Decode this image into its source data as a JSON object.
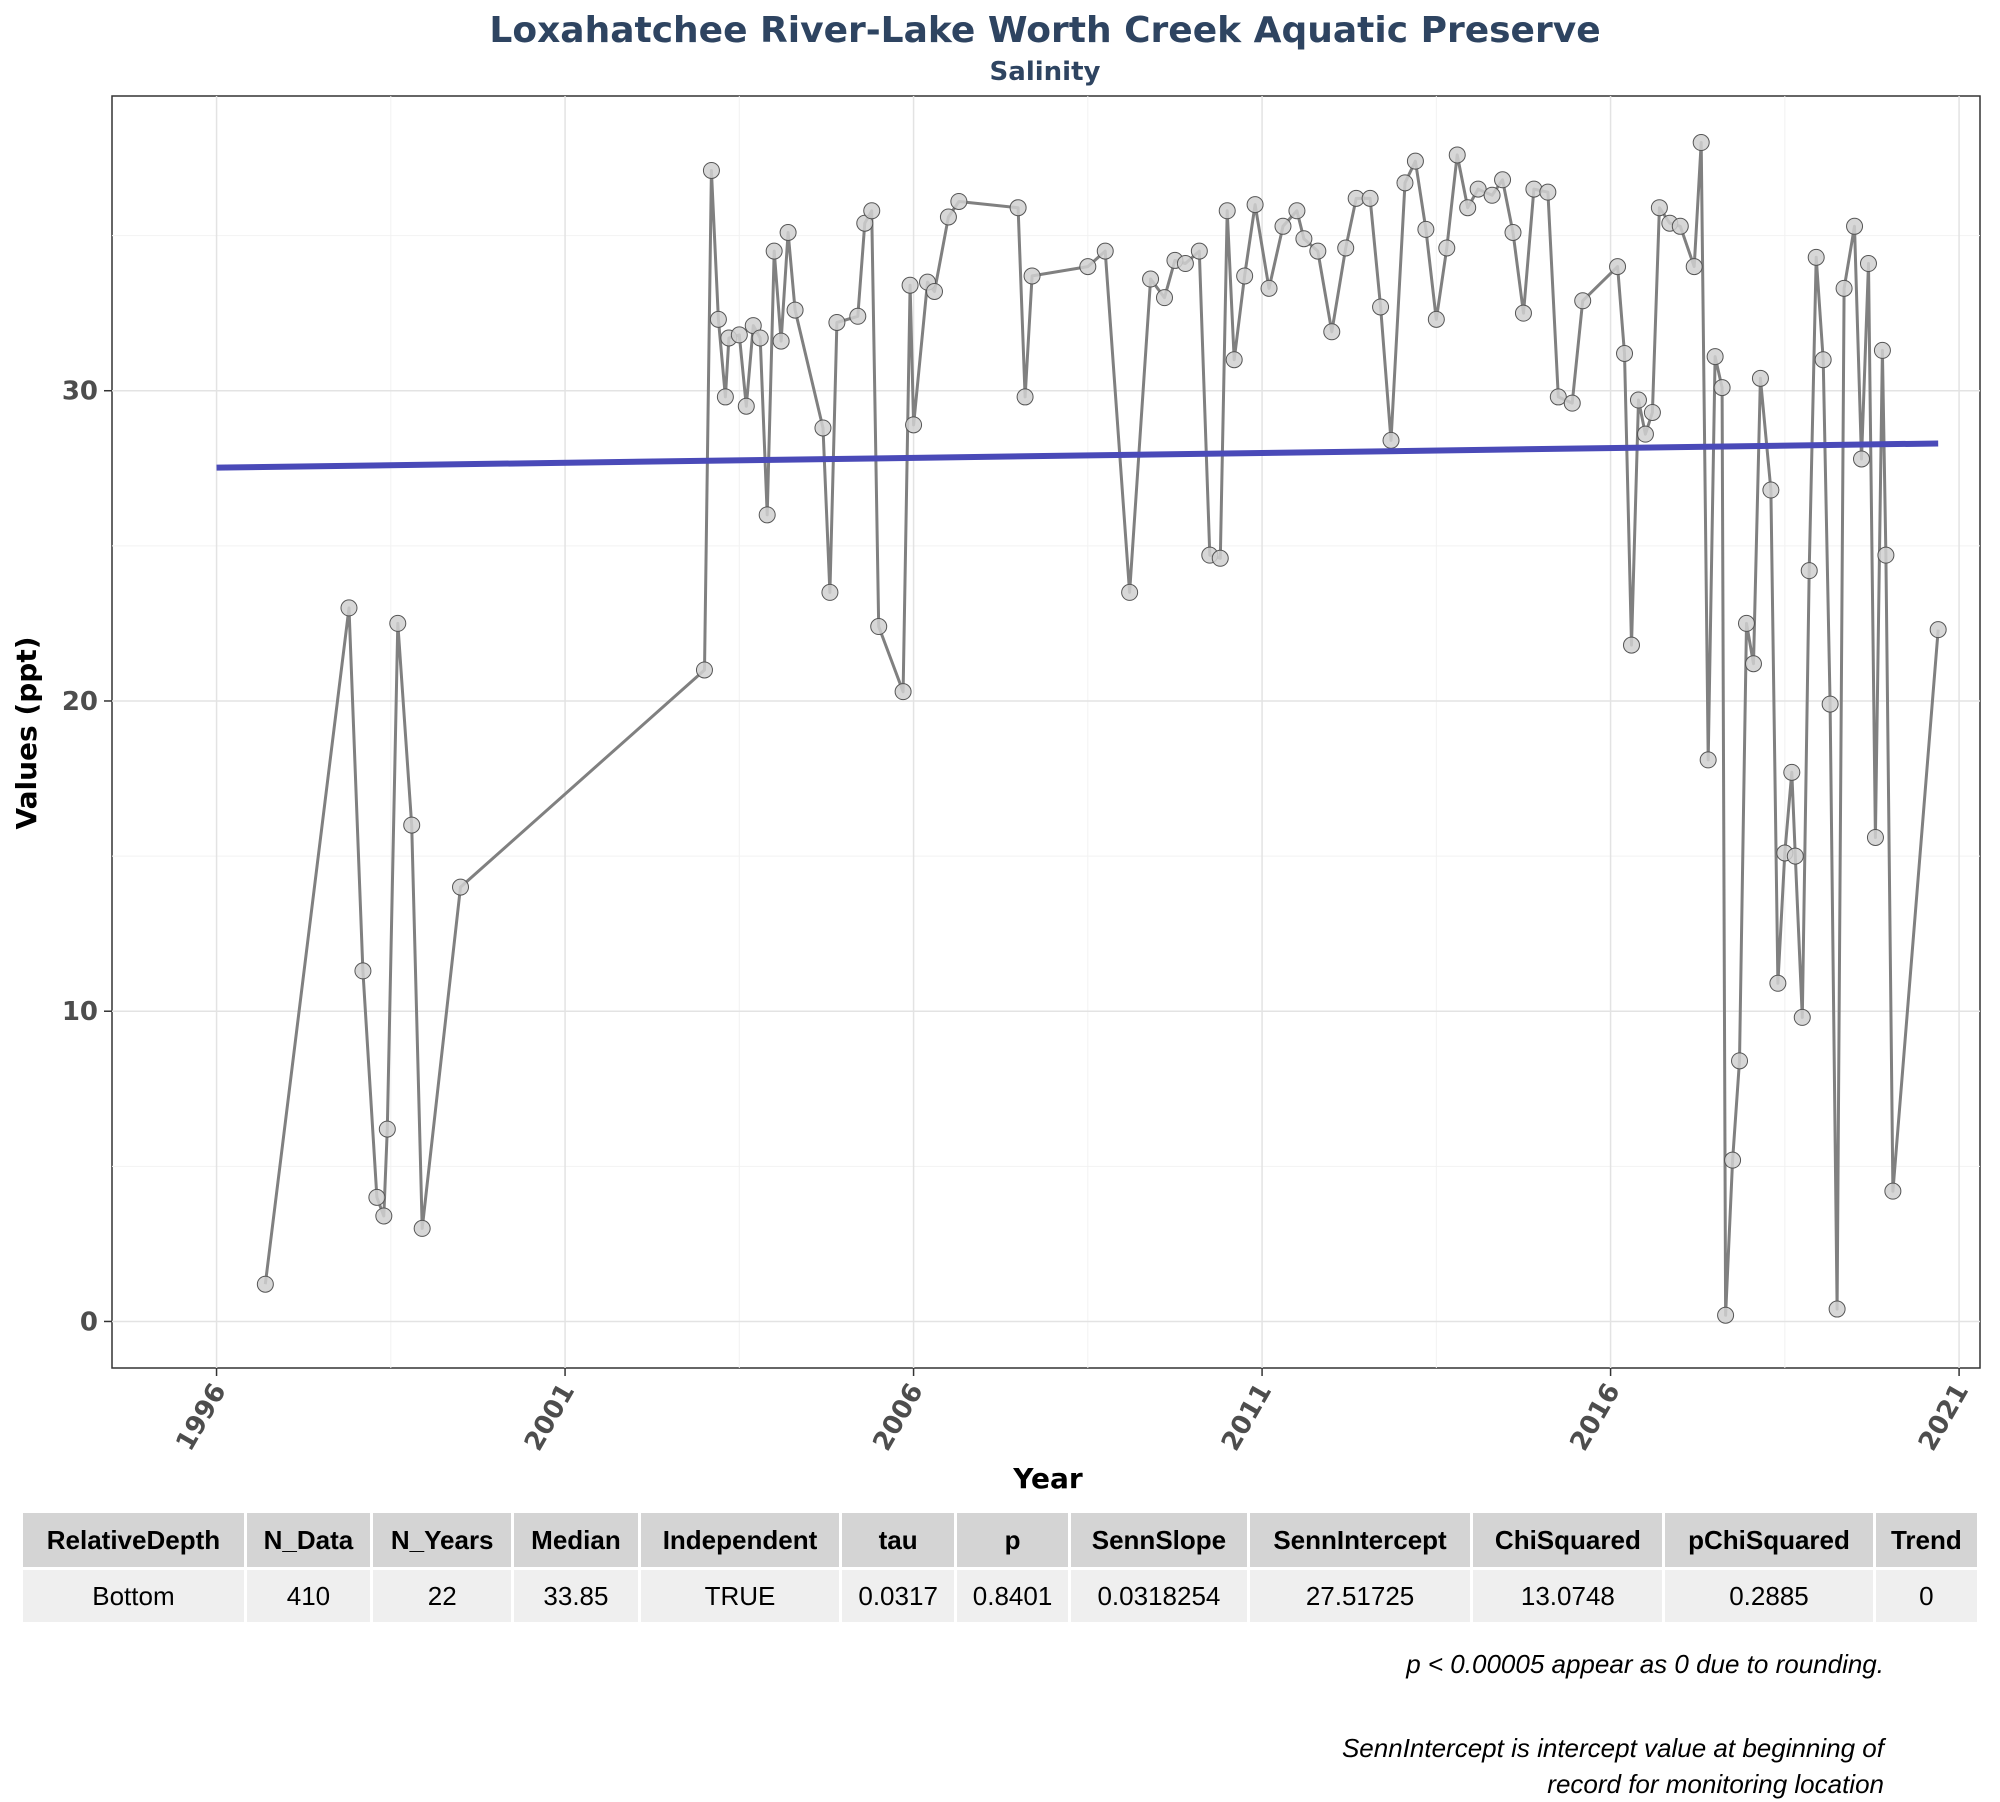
{
  "chart_data": {
    "type": "line",
    "title": "Loxahatchee River-Lake Worth Creek Aquatic Preserve",
    "subtitle": "Salinity",
    "xlabel": "Year",
    "ylabel": "Values (ppt)",
    "xlim": [
      1994.5,
      2021.3
    ],
    "ylim": [
      -1.5,
      39.5
    ],
    "x_ticks": [
      1996,
      2001,
      2006,
      2011,
      2016,
      2021
    ],
    "y_ticks": [
      0,
      10,
      20,
      30
    ],
    "grid": true,
    "colors": {
      "series": "#808080",
      "points": "#d0d0d0",
      "trend": "#4a4ab8",
      "title": "#2e4461"
    },
    "series": [
      {
        "points": [
          [
            1996.7,
            1.2
          ],
          [
            1997.9,
            23.0
          ],
          [
            1998.1,
            11.3
          ],
          [
            1998.3,
            4.0
          ],
          [
            1998.4,
            3.4
          ],
          [
            1998.45,
            6.2
          ],
          [
            1998.6,
            22.5
          ],
          [
            1998.8,
            16.0
          ],
          [
            1998.95,
            3.0
          ],
          [
            1999.5,
            14.0
          ],
          [
            2003.0,
            21.0
          ],
          [
            2003.1,
            37.1
          ],
          [
            2003.2,
            32.3
          ],
          [
            2003.3,
            29.8
          ],
          [
            2003.35,
            31.7
          ],
          [
            2003.5,
            31.8
          ],
          [
            2003.6,
            29.5
          ],
          [
            2003.7,
            32.1
          ],
          [
            2003.8,
            31.7
          ],
          [
            2003.9,
            26.0
          ],
          [
            2004.0,
            34.5
          ],
          [
            2004.1,
            31.6
          ],
          [
            2004.2,
            35.1
          ],
          [
            2004.3,
            32.6
          ],
          [
            2004.7,
            28.8
          ],
          [
            2004.8,
            23.5
          ],
          [
            2004.9,
            32.2
          ],
          [
            2005.2,
            32.4
          ],
          [
            2005.3,
            35.4
          ],
          [
            2005.4,
            35.8
          ],
          [
            2005.5,
            22.4
          ],
          [
            2005.85,
            20.3
          ],
          [
            2005.95,
            33.4
          ],
          [
            2006.0,
            28.9
          ],
          [
            2006.2,
            33.5
          ],
          [
            2006.3,
            33.2
          ],
          [
            2006.5,
            35.6
          ],
          [
            2006.65,
            36.1
          ],
          [
            2007.5,
            35.9
          ],
          [
            2007.6,
            29.8
          ],
          [
            2007.7,
            33.7
          ],
          [
            2008.5,
            34.0
          ],
          [
            2008.75,
            34.5
          ],
          [
            2009.1,
            23.5
          ],
          [
            2009.4,
            33.6
          ],
          [
            2009.6,
            33.0
          ],
          [
            2009.75,
            34.2
          ],
          [
            2009.9,
            34.1
          ],
          [
            2010.1,
            34.5
          ],
          [
            2010.25,
            24.7
          ],
          [
            2010.4,
            24.6
          ],
          [
            2010.5,
            35.8
          ],
          [
            2010.6,
            31.0
          ],
          [
            2010.75,
            33.7
          ],
          [
            2010.9,
            36.0
          ],
          [
            2011.1,
            33.3
          ],
          [
            2011.3,
            35.3
          ],
          [
            2011.5,
            35.8
          ],
          [
            2011.6,
            34.9
          ],
          [
            2011.8,
            34.5
          ],
          [
            2012.0,
            31.9
          ],
          [
            2012.2,
            34.6
          ],
          [
            2012.35,
            36.2
          ],
          [
            2012.55,
            36.2
          ],
          [
            2012.7,
            32.7
          ],
          [
            2012.85,
            28.4
          ],
          [
            2013.05,
            36.7
          ],
          [
            2013.2,
            37.4
          ],
          [
            2013.35,
            35.2
          ],
          [
            2013.5,
            32.3
          ],
          [
            2013.65,
            34.6
          ],
          [
            2013.8,
            37.6
          ],
          [
            2013.95,
            35.9
          ],
          [
            2014.1,
            36.5
          ],
          [
            2014.3,
            36.3
          ],
          [
            2014.45,
            36.8
          ],
          [
            2014.6,
            35.1
          ],
          [
            2014.75,
            32.5
          ],
          [
            2014.9,
            36.5
          ],
          [
            2015.1,
            36.4
          ],
          [
            2015.25,
            29.8
          ],
          [
            2015.45,
            29.6
          ],
          [
            2015.6,
            32.9
          ],
          [
            2016.1,
            34.0
          ],
          [
            2016.2,
            31.2
          ],
          [
            2016.3,
            21.8
          ],
          [
            2016.4,
            29.7
          ],
          [
            2016.5,
            28.6
          ],
          [
            2016.6,
            29.3
          ],
          [
            2016.7,
            35.9
          ],
          [
            2016.85,
            35.4
          ],
          [
            2017.0,
            35.3
          ],
          [
            2017.2,
            34.0
          ],
          [
            2017.3,
            38.0
          ],
          [
            2017.4,
            18.1
          ],
          [
            2017.5,
            31.1
          ],
          [
            2017.6,
            30.1
          ],
          [
            2017.65,
            0.2
          ],
          [
            2017.75,
            5.2
          ],
          [
            2017.85,
            8.4
          ],
          [
            2017.95,
            22.5
          ],
          [
            2018.05,
            21.2
          ],
          [
            2018.15,
            30.4
          ],
          [
            2018.3,
            26.8
          ],
          [
            2018.4,
            10.9
          ],
          [
            2018.5,
            15.1
          ],
          [
            2018.6,
            17.7
          ],
          [
            2018.65,
            15.0
          ],
          [
            2018.75,
            9.8
          ],
          [
            2018.85,
            24.2
          ],
          [
            2018.95,
            34.3
          ],
          [
            2019.05,
            31.0
          ],
          [
            2019.15,
            19.9
          ],
          [
            2019.25,
            0.4
          ],
          [
            2019.35,
            33.3
          ],
          [
            2019.5,
            35.3
          ],
          [
            2019.6,
            27.8
          ],
          [
            2019.7,
            34.1
          ],
          [
            2019.8,
            15.6
          ],
          [
            2019.9,
            31.3
          ],
          [
            2019.95,
            24.7
          ],
          [
            2020.05,
            4.2
          ],
          [
            2020.7,
            22.3
          ]
        ]
      },
      {
        "points": [
          [
            1996.0,
            27.52
          ],
          [
            2020.7,
            28.3
          ]
        ]
      }
    ]
  },
  "table": {
    "headers": [
      "RelativeDepth",
      "N_Data",
      "N_Years",
      "Median",
      "Independent",
      "tau",
      "p",
      "SennSlope",
      "SennIntercept",
      "ChiSquared",
      "pChiSquared",
      "Trend"
    ],
    "rows": [
      [
        "Bottom",
        "410",
        "22",
        "33.85",
        "TRUE",
        "0.0317",
        "0.8401",
        "0.0318254",
        "27.51725",
        "13.0748",
        "0.2885",
        "0"
      ]
    ]
  },
  "notes": {
    "rounding": "p < 0.00005 appear as 0 due to rounding.",
    "intercept_line1": "SennIntercept is intercept value at beginning of",
    "intercept_line2": "record for monitoring location"
  }
}
